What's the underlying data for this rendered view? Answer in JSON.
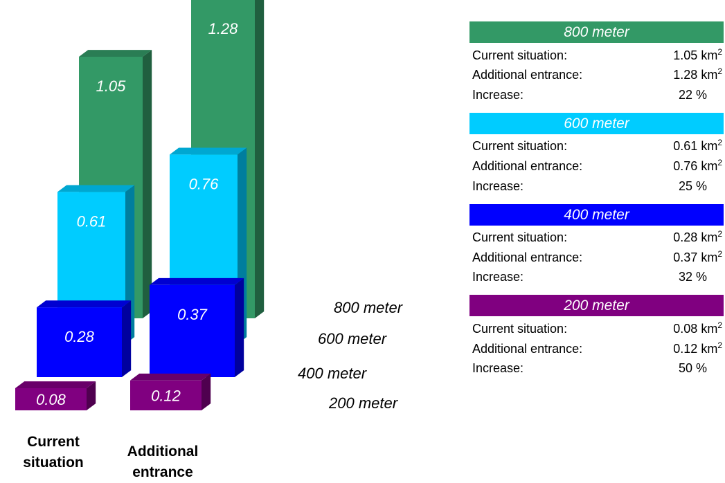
{
  "chart_data": {
    "type": "bar",
    "style": "3d-grouped-depth",
    "categories": [
      "Current situation",
      "Additional entrance"
    ],
    "unit": "km²",
    "series": [
      {
        "name": "200 meter",
        "values": [
          0.08,
          0.12
        ],
        "color": "#800080"
      },
      {
        "name": "400 meter",
        "values": [
          0.28,
          0.37
        ],
        "color": "#0000ff"
      },
      {
        "name": "600 meter",
        "values": [
          0.61,
          0.76
        ],
        "color": "#00ccff"
      },
      {
        "name": "800 meter",
        "values": [
          1.05,
          1.28
        ],
        "color": "#339966"
      }
    ],
    "data_labels": [
      [
        "0.08",
        "0.12"
      ],
      [
        "0.28",
        "0.37"
      ],
      [
        "0.61",
        "0.76"
      ],
      [
        "1.05",
        "1.28"
      ]
    ],
    "depth_labels": [
      "200 meter",
      "400 meter",
      "600 meter",
      "800 meter"
    ],
    "category_labels": [
      "Current\nsituation",
      "Additional\nentrance"
    ],
    "grid": false,
    "legend": "right"
  },
  "panel": {
    "row_labels": {
      "current": "Current situation:",
      "additional": "Additional entrance:",
      "increase": "Increase:"
    },
    "unit": "km",
    "unit_exp": "2",
    "groups": [
      {
        "title": "800 meter",
        "color": "#339966",
        "current": "1.05",
        "additional": "1.28",
        "increase": "22 %"
      },
      {
        "title": "600 meter",
        "color": "#00ccff",
        "current": "0.61",
        "additional": "0.76",
        "increase": "25 %"
      },
      {
        "title": "400 meter",
        "color": "#0000ff",
        "current": "0.28",
        "additional": "0.37",
        "increase": "32 %"
      },
      {
        "title": "200 meter",
        "color": "#800080",
        "current": "0.08",
        "additional": "0.12",
        "increase": "50 %"
      }
    ]
  }
}
